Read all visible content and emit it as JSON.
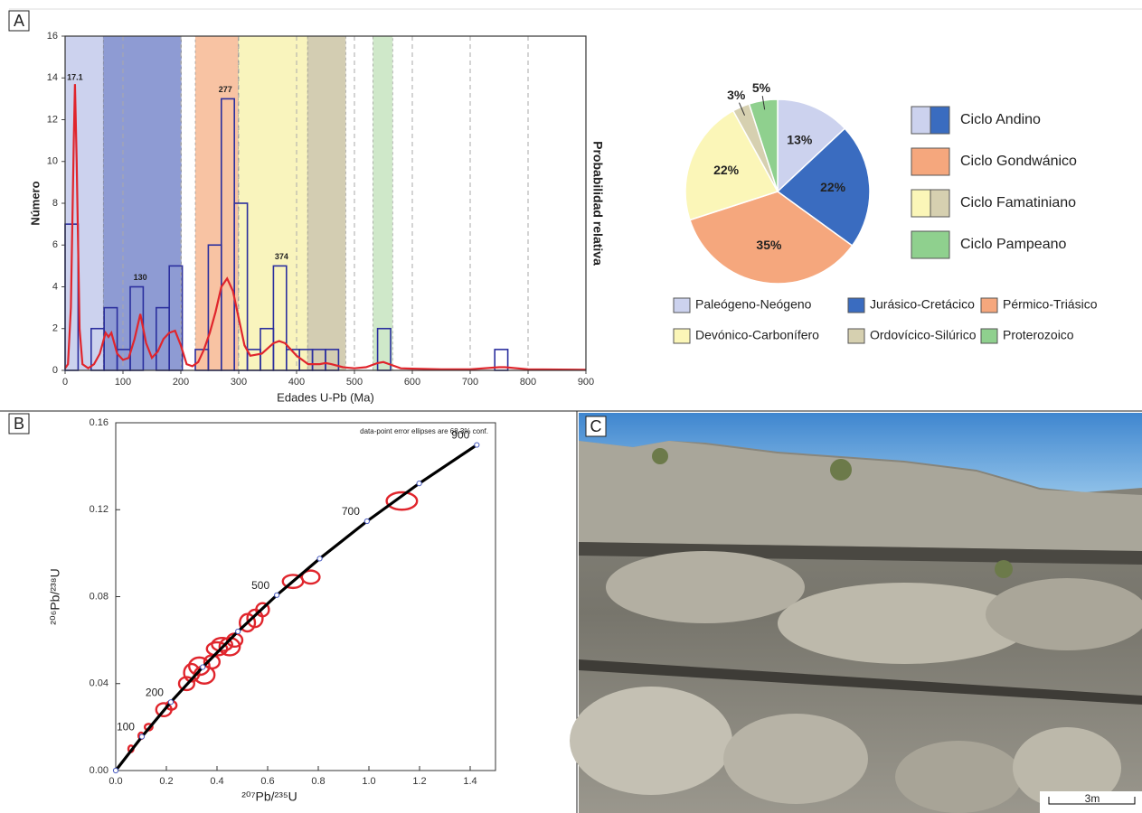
{
  "panels": {
    "a": "A",
    "b": "B",
    "c": "C"
  },
  "photo": {
    "scale_label": "3m"
  },
  "chart_data": [
    {
      "type": "histogram",
      "x_label": "Edades U-Pb (Ma)",
      "y_label": "Número",
      "y2_label": "Probabilidad relativa",
      "xlim": [
        0,
        900
      ],
      "xticks": [
        0,
        100,
        200,
        300,
        400,
        500,
        600,
        700,
        800,
        900
      ],
      "ylim": [
        0,
        16
      ],
      "yticks": [
        0,
        2,
        4,
        6,
        8,
        10,
        12,
        14,
        16
      ],
      "grid": true,
      "bins": [
        0,
        22.5,
        45,
        67.5,
        90,
        112.5,
        135,
        157.5,
        180,
        202.5,
        225,
        247.5,
        270,
        292.5,
        315,
        337.5,
        360,
        382.5,
        405,
        427.5,
        450,
        472.5,
        495,
        517.5,
        540,
        562.5,
        585,
        607.5,
        630,
        652.5,
        675,
        697.5,
        720,
        742.5,
        765,
        787.5
      ],
      "counts": [
        7,
        0,
        2,
        3,
        1,
        4,
        0,
        3,
        5,
        0,
        1,
        6,
        13,
        8,
        1,
        2,
        5,
        1,
        1,
        1,
        1,
        0,
        0,
        0,
        2,
        0,
        0,
        0,
        0,
        0,
        0,
        0,
        0,
        1,
        0
      ],
      "bar_color": "#2b2f9e",
      "curve": {
        "color": "#e0252c",
        "x": [
          0,
          5,
          10,
          15,
          17,
          20,
          25,
          30,
          40,
          50,
          60,
          70,
          75,
          80,
          90,
          100,
          110,
          120,
          130,
          140,
          150,
          160,
          170,
          180,
          190,
          200,
          210,
          220,
          230,
          240,
          250,
          260,
          270,
          280,
          290,
          300,
          310,
          320,
          340,
          360,
          370,
          380,
          400,
          420,
          440,
          450,
          460,
          480,
          500,
          520,
          540,
          550,
          560,
          580,
          600,
          650,
          700,
          750,
          760,
          800,
          900
        ],
        "values": [
          0.1,
          0.3,
          3,
          11,
          13.7,
          10,
          2,
          0.3,
          0.1,
          0.3,
          0.8,
          1.8,
          1.6,
          1.8,
          0.8,
          0.5,
          0.6,
          1.5,
          2.7,
          1.3,
          0.6,
          0.9,
          1.5,
          1.8,
          1.9,
          1.2,
          0.3,
          0.2,
          0.4,
          1.0,
          1.8,
          2.8,
          4.0,
          4.4,
          3.8,
          2.5,
          1.2,
          0.7,
          0.8,
          1.3,
          1.4,
          1.3,
          0.7,
          0.3,
          0.3,
          0.35,
          0.3,
          0.15,
          0.1,
          0.15,
          0.35,
          0.4,
          0.3,
          0.1,
          0.08,
          0.05,
          0.05,
          0.15,
          0.15,
          0.05,
          0.03
        ]
      },
      "peaks": [
        17.1,
        130,
        277,
        374
      ],
      "bands": [
        {
          "range": [
            0,
            66
          ],
          "color": "#ccd2ee"
        },
        {
          "range": [
            66,
            201
          ],
          "color": "#8e9bd3"
        },
        {
          "range": [
            225,
            299
          ],
          "color": "#f8c3a3"
        },
        {
          "range": [
            299,
            419
          ],
          "color": "#f9f4bd"
        },
        {
          "range": [
            419,
            485
          ],
          "color": "#d3cdb2"
        },
        {
          "range": [
            532,
            566
          ],
          "color": "#cfe8c9"
        }
      ]
    },
    {
      "type": "pie",
      "categories": [
        "Paleógeno-Neógeno",
        "Jurásico-Cretácico",
        "Pérmico-Triásico",
        "Devónico-Carbonífero",
        "Ordovícico-Silúrico",
        "Proterozoico"
      ],
      "values": [
        13,
        22,
        35,
        22,
        3,
        5
      ],
      "value_labels": [
        "13%",
        "22%",
        "35%",
        "22%",
        "3%",
        "5%"
      ],
      "colors": [
        "#ccd2ee",
        "#3a6cc0",
        "#f5a77d",
        "#fbf6b8",
        "#d6d0b0",
        "#8fd08e"
      ],
      "cycles": [
        {
          "name": "Ciclo Andino",
          "colors": [
            "#ccd2ee",
            "#3a6cc0"
          ]
        },
        {
          "name": "Ciclo Gondwánico",
          "colors": [
            "#f5a77d"
          ]
        },
        {
          "name": "Ciclo Famatiniano",
          "colors": [
            "#fbf6b8",
            "#d6d0b0"
          ]
        },
        {
          "name": "Ciclo Pampeano",
          "colors": [
            "#8fd08e"
          ]
        }
      ]
    },
    {
      "type": "scatter",
      "note": "data-point error ellipses are 68.3% conf.",
      "x_label": "²⁰⁷Pb/²³⁵U",
      "y_label": "²⁰⁶Pb/²³⁸U",
      "xlim": [
        0,
        1.5
      ],
      "xticks": [
        {
          "value": 0,
          "label": "0.0"
        },
        {
          "value": 0.2,
          "label": "0.2"
        },
        {
          "value": 0.4,
          "label": "0.4"
        },
        {
          "value": 0.6,
          "label": "0.6"
        },
        {
          "value": 0.8,
          "label": "0.8"
        },
        {
          "value": 1,
          "label": "1.0"
        },
        {
          "value": 1.2,
          "label": "1.2"
        },
        {
          "value": 1.4,
          "label": "1.4"
        }
      ],
      "ylim": [
        0,
        0.16
      ],
      "yticks": [
        {
          "value": 0,
          "label": "0.00"
        },
        {
          "value": 0.04,
          "label": "0.04"
        },
        {
          "value": 0.08,
          "label": "0.08"
        },
        {
          "value": 0.12,
          "label": "0.12"
        },
        {
          "value": 0.16,
          "label": "0.16"
        }
      ],
      "concordia": {
        "color": "#000000",
        "ages": [
          0,
          100,
          200,
          300,
          400,
          500,
          600,
          700,
          800,
          900
        ],
        "x": [
          0,
          0.1035,
          0.2177,
          0.3438,
          0.4828,
          0.6362,
          0.8056,
          0.9925,
          1.1987,
          1.4262
        ],
        "y": [
          0,
          0.0156,
          0.0315,
          0.0476,
          0.064,
          0.0807,
          0.0975,
          0.1147,
          0.1321,
          0.1498
        ]
      },
      "age_labels": [
        100,
        200,
        500,
        700,
        900
      ],
      "ellipses": {
        "color": "#e0252c",
        "x": [
          0.06,
          0.1,
          0.13,
          0.19,
          0.22,
          0.28,
          0.3,
          0.33,
          0.35,
          0.38,
          0.4,
          0.42,
          0.45,
          0.47,
          0.52,
          0.55,
          0.58,
          0.7,
          0.77,
          1.13
        ],
        "y": [
          0.01,
          0.016,
          0.02,
          0.028,
          0.03,
          0.04,
          0.045,
          0.048,
          0.044,
          0.05,
          0.056,
          0.058,
          0.057,
          0.06,
          0.068,
          0.07,
          0.074,
          0.087,
          0.089,
          0.124
        ],
        "x_err": [
          0.01,
          0.01,
          0.015,
          0.03,
          0.02,
          0.03,
          0.03,
          0.04,
          0.04,
          0.03,
          0.04,
          0.04,
          0.04,
          0.03,
          0.03,
          0.03,
          0.025,
          0.04,
          0.035,
          0.06
        ],
        "y_err": [
          0.0015,
          0.0015,
          0.0015,
          0.003,
          0.002,
          0.003,
          0.004,
          0.004,
          0.004,
          0.003,
          0.003,
          0.003,
          0.004,
          0.003,
          0.004,
          0.004,
          0.003,
          0.003,
          0.003,
          0.004
        ]
      }
    }
  ]
}
